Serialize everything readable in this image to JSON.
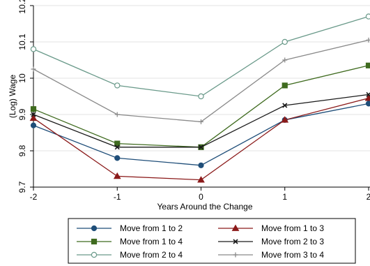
{
  "chart_data": {
    "type": "line",
    "xlabel": "Years Around the Change",
    "ylabel": "(Log) Wage",
    "x": [
      -2,
      -1,
      0,
      1,
      2
    ],
    "x_tick_labels": [
      "-2",
      "-1",
      "0",
      "1",
      "2"
    ],
    "y_ticks": [
      9.7,
      9.8,
      9.9,
      10,
      10.1,
      10.2
    ],
    "y_tick_labels": [
      "9.7",
      "9.8",
      "9.9",
      "10",
      "10.1",
      "10.2"
    ],
    "xlim": [
      -2,
      2
    ],
    "ylim": [
      9.7,
      10.2
    ],
    "grid": "horizontal",
    "legend_position": "bottom",
    "series": [
      {
        "name": "Move from 1 to 2",
        "color": "#1f4e79",
        "marker": "circle-filled",
        "values": [
          9.87,
          9.78,
          9.76,
          9.885,
          9.93
        ]
      },
      {
        "name": "Move from 1 to 3",
        "color": "#8b1a1a",
        "marker": "triangle-filled",
        "values": [
          9.89,
          9.73,
          9.72,
          9.885,
          9.945
        ]
      },
      {
        "name": "Move from 1 to 4",
        "color": "#3f6b1f",
        "marker": "square-filled",
        "values": [
          9.915,
          9.82,
          9.81,
          9.98,
          10.035
        ]
      },
      {
        "name": "Move from 2 to 3",
        "color": "#1a1a1a",
        "marker": "x",
        "values": [
          9.9,
          9.81,
          9.81,
          9.925,
          9.955
        ]
      },
      {
        "name": "Move from 2 to 4",
        "color": "#6a9a8a",
        "marker": "circle-hollow",
        "values": [
          10.08,
          9.98,
          9.95,
          10.1,
          10.17
        ]
      },
      {
        "name": "Move from 3 to 4",
        "color": "#8a8a8a",
        "marker": "plus",
        "values": [
          10.025,
          9.9,
          9.88,
          10.05,
          10.105
        ]
      }
    ]
  }
}
